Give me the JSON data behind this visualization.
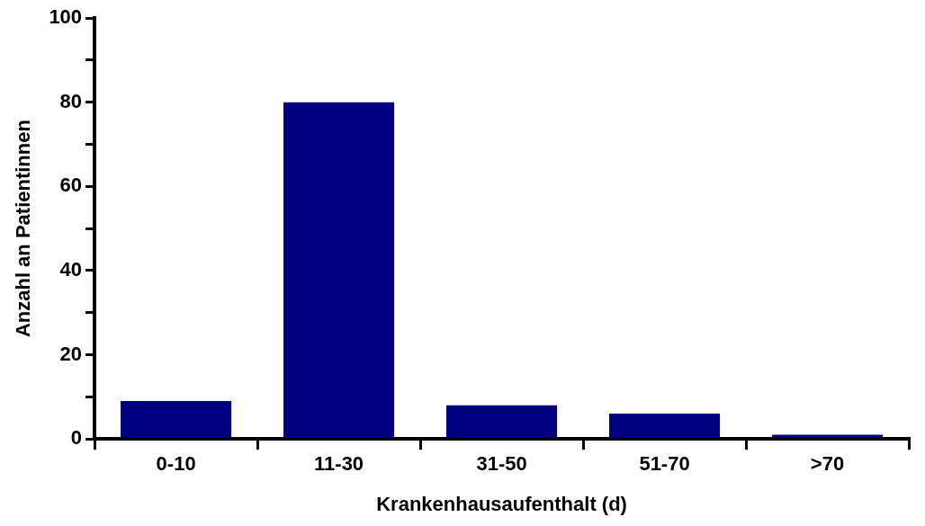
{
  "chart_data": {
    "type": "bar",
    "xlabel": "Krankenhausaufenthalt (d)",
    "ylabel": "Anzahl an Patientinnen",
    "categories": [
      "0-10",
      "11-30",
      "31-50",
      "51-70",
      ">70"
    ],
    "values": [
      9,
      80,
      8,
      6,
      1
    ],
    "color": "#000080",
    "ylim": [
      0,
      100
    ],
    "yticks": [
      0,
      {
        "value": 10,
        "label": null
      },
      20,
      {
        "value": 30,
        "label": null
      },
      40,
      {
        "value": 50,
        "label": null
      },
      60,
      {
        "value": 70,
        "label": null
      },
      80,
      {
        "value": 90,
        "label": null
      },
      100
    ],
    "grid": false,
    "legend": false
  }
}
